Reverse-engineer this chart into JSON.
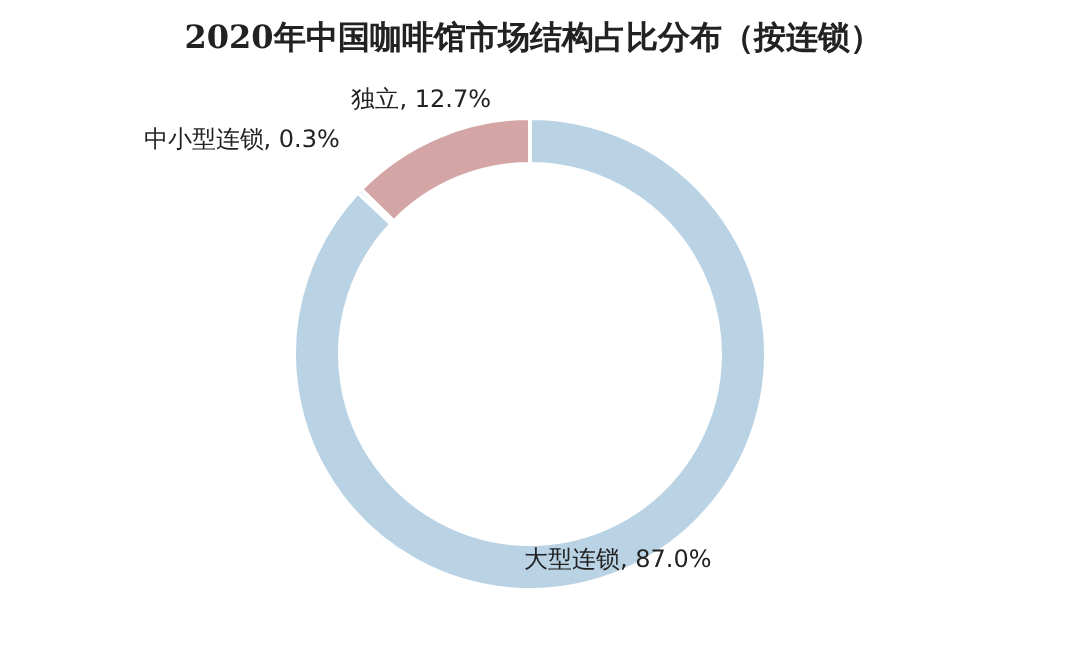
{
  "chart_data": {
    "type": "donut",
    "title": "2020年中国咖啡馆市场结构占比分布（按连锁）",
    "categories": [
      "大型连锁",
      "中小型连锁",
      "独立"
    ],
    "values": [
      87.0,
      0.3,
      12.7
    ],
    "value_labels": [
      "87.0%",
      "0.3%",
      "12.7%"
    ],
    "colors": [
      "#b9d3e5",
      "#9fb9cc",
      "#d4a5a5"
    ]
  }
}
